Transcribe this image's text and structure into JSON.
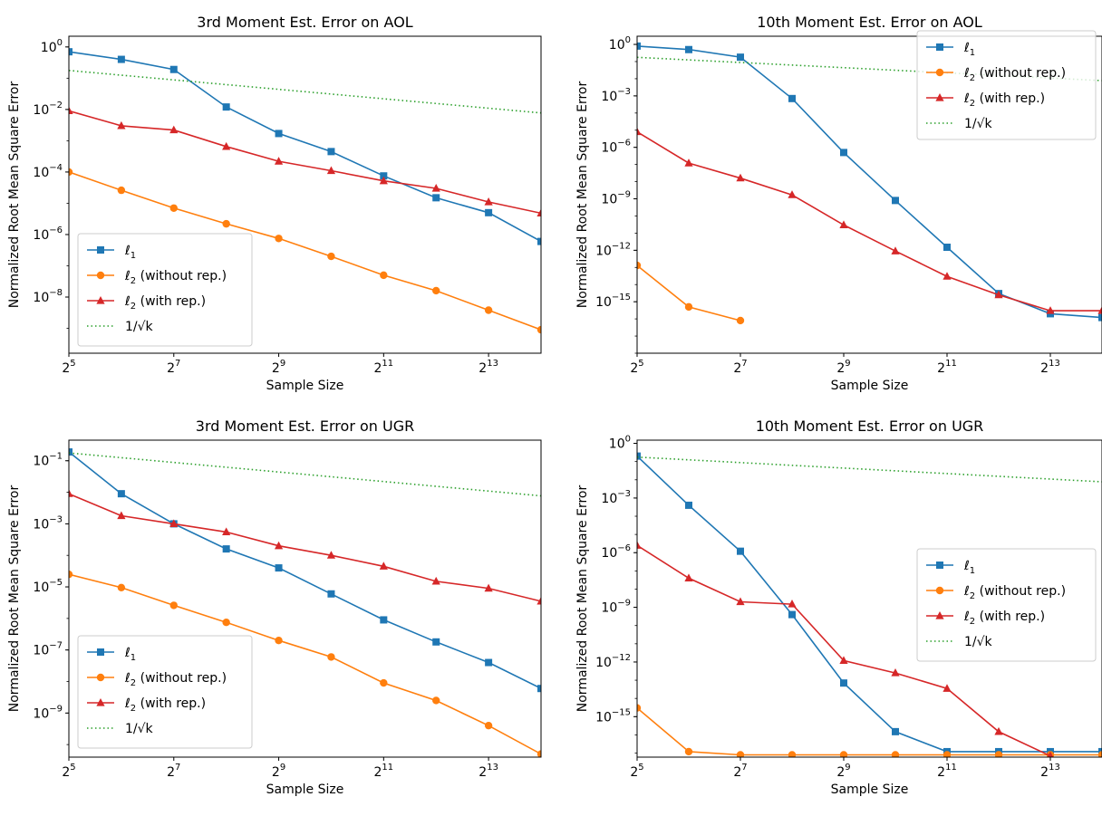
{
  "figure": {
    "xlabel": "Sample Size",
    "ylabel": "Normalized Root Mean Square Error"
  },
  "series_styles": [
    {
      "key": "l1",
      "color": "#1f77b4",
      "marker": "square",
      "dash": "solid"
    },
    {
      "key": "l2_norep",
      "color": "#ff7f0e",
      "marker": "circle",
      "dash": "solid"
    },
    {
      "key": "l2_rep",
      "color": "#d62728",
      "marker": "triangle",
      "dash": "solid"
    },
    {
      "key": "ref",
      "color": "#2ca02c",
      "marker": "none",
      "dash": "dotted"
    }
  ],
  "chart_data": [
    {
      "type": "line",
      "title": "3rd Moment Est. Error on AOL",
      "xlabel": "Sample Size",
      "ylabel": "Normalized Root Mean Square Error",
      "xscale": "log2",
      "yscale": "log10",
      "xlim": [
        32,
        16384
      ],
      "ylim": [
        1.6e-10,
        2.2
      ],
      "x_ticks": [
        "2^5",
        "2^7",
        "2^9",
        "2^11",
        "2^13"
      ],
      "y_ticks": [
        "10^0",
        "10^-2",
        "10^-4",
        "10^-6",
        "10^-8"
      ],
      "legend": "lower-left",
      "x": [
        32,
        64,
        128,
        256,
        512,
        1024,
        2048,
        4096,
        8192,
        16384
      ],
      "series": [
        {
          "name": "ℓ1",
          "values": [
            0.7,
            0.4,
            0.19,
            0.012,
            0.0017,
            0.00045,
            7.5e-05,
            1.5e-05,
            5e-06,
            6e-07
          ]
        },
        {
          "name": "ℓ2 (without rep.)",
          "values": [
            0.0001,
            2.6e-05,
            7e-06,
            2.2e-06,
            7.5e-07,
            2e-07,
            5e-08,
            1.6e-08,
            3.8e-09,
            9e-10
          ]
        },
        {
          "name": "ℓ2 (with rep.)",
          "values": [
            0.009,
            0.003,
            0.0022,
            0.00065,
            0.00022,
            0.00011,
            5.2e-05,
            3e-05,
            1.1e-05,
            4.8e-06
          ]
        },
        {
          "name": "1/√k",
          "values": [
            0.1768,
            0.00773
          ],
          "x": [
            32,
            16384
          ]
        }
      ]
    },
    {
      "type": "line",
      "title": "10th Moment Est. Error on AOL",
      "xlabel": "Sample Size",
      "ylabel": "Normalized Root Mean Square Error",
      "xscale": "log2",
      "yscale": "log10",
      "xlim": [
        32,
        16384
      ],
      "ylim": [
        1e-18,
        3
      ],
      "x_ticks": [
        "2^5",
        "2^7",
        "2^9",
        "2^11",
        "2^13"
      ],
      "y_ticks": [
        "10^0",
        "10^-3",
        "10^-6",
        "10^-9",
        "10^-12",
        "10^-15"
      ],
      "legend": "upper-right",
      "x": [
        32,
        64,
        128,
        256,
        512,
        1024,
        2048,
        4096,
        8192,
        16384
      ],
      "series": [
        {
          "name": "ℓ1",
          "values": [
            0.8,
            0.5,
            0.18,
            0.0007,
            5e-07,
            8e-10,
            1.5e-12,
            3e-15,
            2e-16,
            1.2e-16
          ]
        },
        {
          "name": "ℓ2 (without rep.)",
          "values": [
            1.3e-13,
            5e-16,
            8e-17,
            null,
            null,
            null,
            null,
            null,
            null,
            null
          ]
        },
        {
          "name": "ℓ2 (with rep.)",
          "values": [
            8e-06,
            1.2e-07,
            1.6e-08,
            1.7e-09,
            3e-11,
            9e-13,
            3e-14,
            2.5e-15,
            3e-16,
            3e-16
          ]
        },
        {
          "name": "1/√k",
          "values": [
            0.1768,
            0.00773
          ],
          "x": [
            32,
            16384
          ]
        }
      ]
    },
    {
      "type": "line",
      "title": "3rd Moment Est. Error on UGR",
      "xlabel": "Sample Size",
      "ylabel": "Normalized Root Mean Square Error",
      "xscale": "log2",
      "yscale": "log10",
      "xlim": [
        32,
        16384
      ],
      "ylim": [
        4e-11,
        0.45
      ],
      "x_ticks": [
        "2^5",
        "2^7",
        "2^9",
        "2^11",
        "2^13"
      ],
      "y_ticks": [
        "10^-1",
        "10^-3",
        "10^-5",
        "10^-7",
        "10^-9"
      ],
      "legend": "lower-left",
      "x": [
        32,
        64,
        128,
        256,
        512,
        1024,
        2048,
        4096,
        8192,
        16384
      ],
      "series": [
        {
          "name": "ℓ1",
          "values": [
            0.19,
            0.009,
            0.001,
            0.00016,
            4e-05,
            6e-06,
            9e-07,
            1.8e-07,
            4e-08,
            6e-09
          ]
        },
        {
          "name": "ℓ2 (without rep.)",
          "values": [
            2.5e-05,
            9.5e-06,
            2.6e-06,
            7.5e-07,
            2e-07,
            6e-08,
            9e-09,
            2.5e-09,
            4e-10,
            5e-11
          ]
        },
        {
          "name": "ℓ2 (with rep.)",
          "values": [
            0.009,
            0.0018,
            0.001,
            0.00055,
            0.0002,
            0.0001,
            4.5e-05,
            1.5e-05,
            9e-06,
            3.5e-06
          ]
        },
        {
          "name": "1/√k",
          "values": [
            0.1768,
            0.00773
          ],
          "x": [
            32,
            16384
          ]
        }
      ]
    },
    {
      "type": "line",
      "title": "10th Moment Est. Error on UGR",
      "xlabel": "Sample Size",
      "ylabel": "Normalized Root Mean Square Error",
      "xscale": "log2",
      "yscale": "log10",
      "xlim": [
        32,
        16384
      ],
      "ylim": [
        6e-18,
        1.5
      ],
      "x_ticks": [
        "2^5",
        "2^7",
        "2^9",
        "2^11",
        "2^13"
      ],
      "y_ticks": [
        "10^0",
        "10^-3",
        "10^-6",
        "10^-9",
        "10^-12",
        "10^-15"
      ],
      "legend": "center-right",
      "x": [
        32,
        64,
        128,
        256,
        512,
        1024,
        2048,
        4096,
        8192,
        16384
      ],
      "series": [
        {
          "name": "ℓ1",
          "values": [
            0.2,
            0.0004,
            1.2e-06,
            4e-10,
            7e-14,
            1.5e-16,
            1.2e-17,
            1.2e-17,
            1.2e-17,
            1.2e-17
          ]
        },
        {
          "name": "ℓ2 (without rep.)",
          "values": [
            3e-15,
            1.2e-17,
            8e-18,
            8e-18,
            8e-18,
            8e-18,
            8e-18,
            8e-18,
            8e-18,
            8e-18
          ]
        },
        {
          "name": "ℓ2 (with rep.)",
          "values": [
            2.5e-06,
            4e-08,
            2e-09,
            1.5e-09,
            1.2e-12,
            2.5e-13,
            3.5e-14,
            1.5e-16,
            7e-18,
            null
          ]
        },
        {
          "name": "1/√k",
          "values": [
            0.1768,
            0.00773
          ],
          "x": [
            32,
            16384
          ]
        }
      ]
    }
  ]
}
